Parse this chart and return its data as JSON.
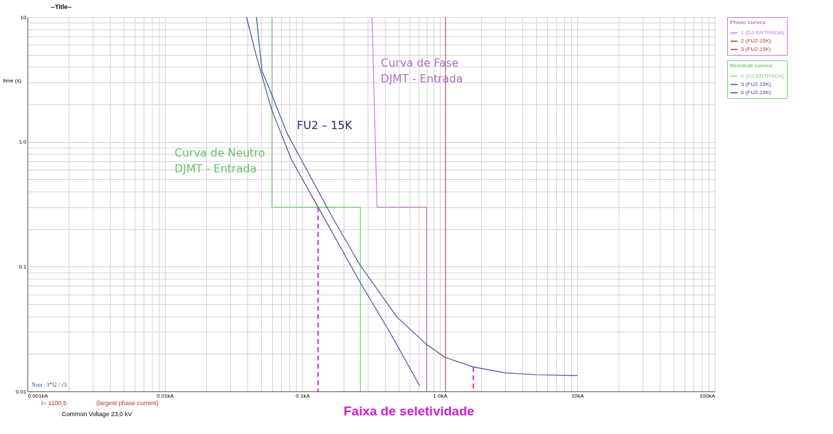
{
  "chart_data": {
    "type": "line",
    "title": "--Title--",
    "ylabel": "time (s)",
    "legend_title": [
      "Phase curves",
      "Residual curves"
    ],
    "log": "xy",
    "grid": true,
    "legend": "right",
    "xlim": [
      0.001,
      100
    ],
    "ylim": [
      0.01,
      10
    ],
    "xticks": [
      {
        "value": 0.001,
        "label": "0.001kA"
      },
      {
        "value": 0.002,
        "label": null
      },
      {
        "value": 0.003,
        "label": null
      },
      {
        "value": 0.004,
        "label": null
      },
      {
        "value": 0.005,
        "label": null
      },
      {
        "value": 0.006,
        "label": null
      },
      {
        "value": 0.007,
        "label": null
      },
      {
        "value": 0.008,
        "label": null
      },
      {
        "value": 0.009,
        "label": null
      },
      {
        "value": 0.01,
        "label": "0.01kA"
      },
      {
        "value": 0.02,
        "label": null
      },
      {
        "value": 0.03,
        "label": null
      },
      {
        "value": 0.04,
        "label": null
      },
      {
        "value": 0.05,
        "label": null
      },
      {
        "value": 0.06,
        "label": null
      },
      {
        "value": 0.07,
        "label": null
      },
      {
        "value": 0.08,
        "label": null
      },
      {
        "value": 0.09,
        "label": null
      },
      {
        "value": 0.1,
        "label": "0.1kA"
      },
      {
        "value": 0.2,
        "label": null
      },
      {
        "value": 0.3,
        "label": null
      },
      {
        "value": 0.4,
        "label": null
      },
      {
        "value": 0.5,
        "label": null
      },
      {
        "value": 0.6,
        "label": null
      },
      {
        "value": 0.7,
        "label": null
      },
      {
        "value": 0.8,
        "label": null
      },
      {
        "value": 0.9,
        "label": null
      },
      {
        "value": 1,
        "label": "1.0kA"
      },
      {
        "value": 2,
        "label": null
      },
      {
        "value": 3,
        "label": null
      },
      {
        "value": 4,
        "label": null
      },
      {
        "value": 5,
        "label": null
      },
      {
        "value": 6,
        "label": null
      },
      {
        "value": 7,
        "label": null
      },
      {
        "value": 8,
        "label": null
      },
      {
        "value": 9,
        "label": null
      },
      {
        "value": 10,
        "label": "10kA"
      },
      {
        "value": 20,
        "label": null
      },
      {
        "value": 30,
        "label": null
      },
      {
        "value": 40,
        "label": null
      },
      {
        "value": 50,
        "label": null
      },
      {
        "value": 60,
        "label": null
      },
      {
        "value": 70,
        "label": null
      },
      {
        "value": 80,
        "label": null
      },
      {
        "value": 90,
        "label": null
      },
      {
        "value": 100,
        "label": "100kA"
      }
    ],
    "yticks": [
      0.01,
      {
        "value": 0.02,
        "label": null
      },
      {
        "value": 0.03,
        "label": null
      },
      {
        "value": 0.04,
        "label": null
      },
      {
        "value": 0.05,
        "label": null
      },
      {
        "value": 0.06,
        "label": null
      },
      {
        "value": 0.07,
        "label": null
      },
      {
        "value": 0.08,
        "label": null
      },
      {
        "value": 0.09,
        "label": null
      },
      0.1,
      {
        "value": 0.2,
        "label": null
      },
      {
        "value": 0.3,
        "label": null
      },
      {
        "value": 0.4,
        "label": null
      },
      {
        "value": 0.5,
        "label": null
      },
      {
        "value": 0.6,
        "label": null
      },
      {
        "value": 0.7,
        "label": null
      },
      {
        "value": 0.8,
        "label": null
      },
      {
        "value": 0.9,
        "label": null
      },
      {
        "value": 1,
        "label": "1.0"
      },
      {
        "value": 2,
        "label": null
      },
      {
        "value": 3,
        "label": null
      },
      {
        "value": 4,
        "label": null
      },
      {
        "value": 5,
        "label": null
      },
      {
        "value": 6,
        "label": null
      },
      {
        "value": 7,
        "label": null
      },
      {
        "value": 8,
        "label": null
      },
      {
        "value": 9,
        "label": null
      },
      10
    ],
    "series": [
      {
        "name": "1 (DJ-ENTRADA)",
        "color": "#c080d0",
        "x": [
          0.321,
          0.349,
          0.8,
          0.8
        ],
        "values": [
          10,
          0.3,
          0.3,
          0.01
        ]
      },
      {
        "name": "2 (FU2-15K)",
        "color": "#c03030"
      },
      {
        "name": "3 (FU2-15K)",
        "color": "#c03030"
      },
      {
        "name": "4 (DJ-ENTRADA)",
        "color": "#7fcf7f",
        "x": [
          0.06,
          0.06,
          0.264,
          0.264
        ],
        "values": [
          10,
          0.3,
          0.3,
          0.01
        ]
      },
      {
        "name": "5 (FU2-15K)",
        "color": "#4a4a96",
        "x": [
          0.0392,
          0.0458,
          0.0594,
          0.083,
          0.13,
          0.261,
          0.44,
          0.716
        ],
        "values": [
          10,
          5.07,
          1.85,
          0.726,
          0.3,
          0.076,
          0.0288,
          0.011
        ]
      },
      {
        "name": "6 (FU2-15K)",
        "color": "#4a4a96",
        "x": [
          0.0463,
          0.0508,
          0.0594,
          0.0771,
          0.11,
          0.167,
          0.261,
          0.488,
          0.794,
          1.087,
          1.75,
          2.96,
          4.98,
          10
        ],
        "values": [
          10,
          3.7,
          2.45,
          1.18,
          0.57,
          0.244,
          0.104,
          0.0394,
          0.024,
          0.0188,
          0.0157,
          0.0141,
          0.0136,
          0.0134
        ]
      },
      {
        "color": "#e020e0",
        "line_style": "dashed",
        "x": [
          0.13,
          0.13
        ],
        "values": [
          0.3,
          0.01
        ]
      },
      {
        "color": "#e020e0",
        "line_style": "dashed",
        "x": [
          1.75,
          1.75
        ],
        "values": [
          0.0157,
          0.01
        ]
      }
    ],
    "ref_lines": [
      {
        "axis": "x",
        "value": 1.1005,
        "color": "#a86060"
      }
    ],
    "annotations": [
      "Curva de Fase\nDJMT - Entrada",
      "FU2 – 15K",
      "Curva de Neutro\nDJMT - Entrada",
      "Nota : 3*I2 / √3",
      "I= 1100,5",
      "(largest phase current)",
      "Common Voltage 23,0 kV",
      "Faixa de seletividade"
    ]
  }
}
